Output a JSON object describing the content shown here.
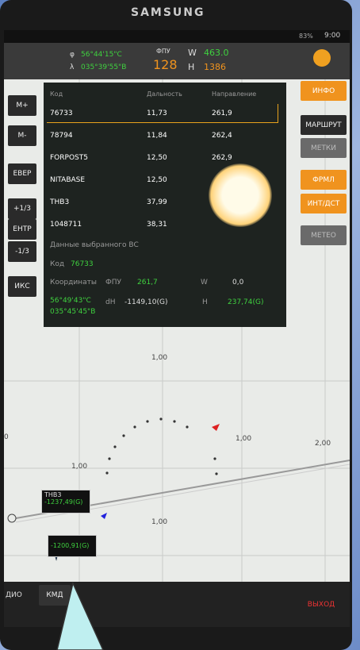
{
  "device": {
    "brand": "SAMSUNG",
    "battery": "83%",
    "time": "9:00"
  },
  "header": {
    "phi_symbol": "φ",
    "phi": "56°44'15\"C",
    "lambda_symbol": "λ",
    "lambda": "035°39'55\"B",
    "fpu_label": "ФПУ",
    "fpu": "128",
    "w_label": "W",
    "w": "463.0",
    "h_label": "H",
    "h": "1386"
  },
  "left_buttons": [
    "M+",
    "M-",
    "ЕВЕР",
    "+1/3",
    "ЕНТР",
    "-1/3",
    "ИКС"
  ],
  "right_buttons": [
    "ИНФО",
    "МАРШРУТ",
    "МЕТКИ",
    "ФРМЛ",
    "ИНТ/ДСТ",
    "МЕТЕО"
  ],
  "table": {
    "headers": [
      "Код",
      "Дальность",
      "Направление"
    ],
    "rows": [
      [
        "76733",
        "11,73",
        "261,9"
      ],
      [
        "78794",
        "11,84",
        "262,4"
      ],
      [
        "FORPOST5",
        "12,50",
        "262,9"
      ],
      [
        "NITABASE",
        "12,50"
      ],
      [
        "ТНВ3",
        "37,99"
      ],
      [
        "1048711",
        "38,31"
      ]
    ]
  },
  "selected": {
    "title": "Данные выбранного ВС",
    "code_label": "Код",
    "code": "76733",
    "coords_label": "Координаты",
    "fpu_label": "ФПУ",
    "fpu": "261,7",
    "w_label": "W",
    "w": "0,0",
    "lat": "56°49'43\"С",
    "lon": "035°45'45\"В",
    "dh_label": "dH",
    "dh": "-1149,10(G)",
    "h_label": "H",
    "h": "237,74(G)"
  },
  "map": {
    "range_labels": [
      "1,00",
      "1,00",
      "1,00",
      "1,00",
      "2,00"
    ],
    "edge_label": "0",
    "targets": [
      {
        "name": "ТНВ3",
        "dh": "-1237,49(G)"
      },
      {
        "dh": "-1200,91(G)"
      }
    ]
  },
  "bottom": {
    "left": "ДИО",
    "kmd": "КМД",
    "exit": "ВЫХОД"
  }
}
